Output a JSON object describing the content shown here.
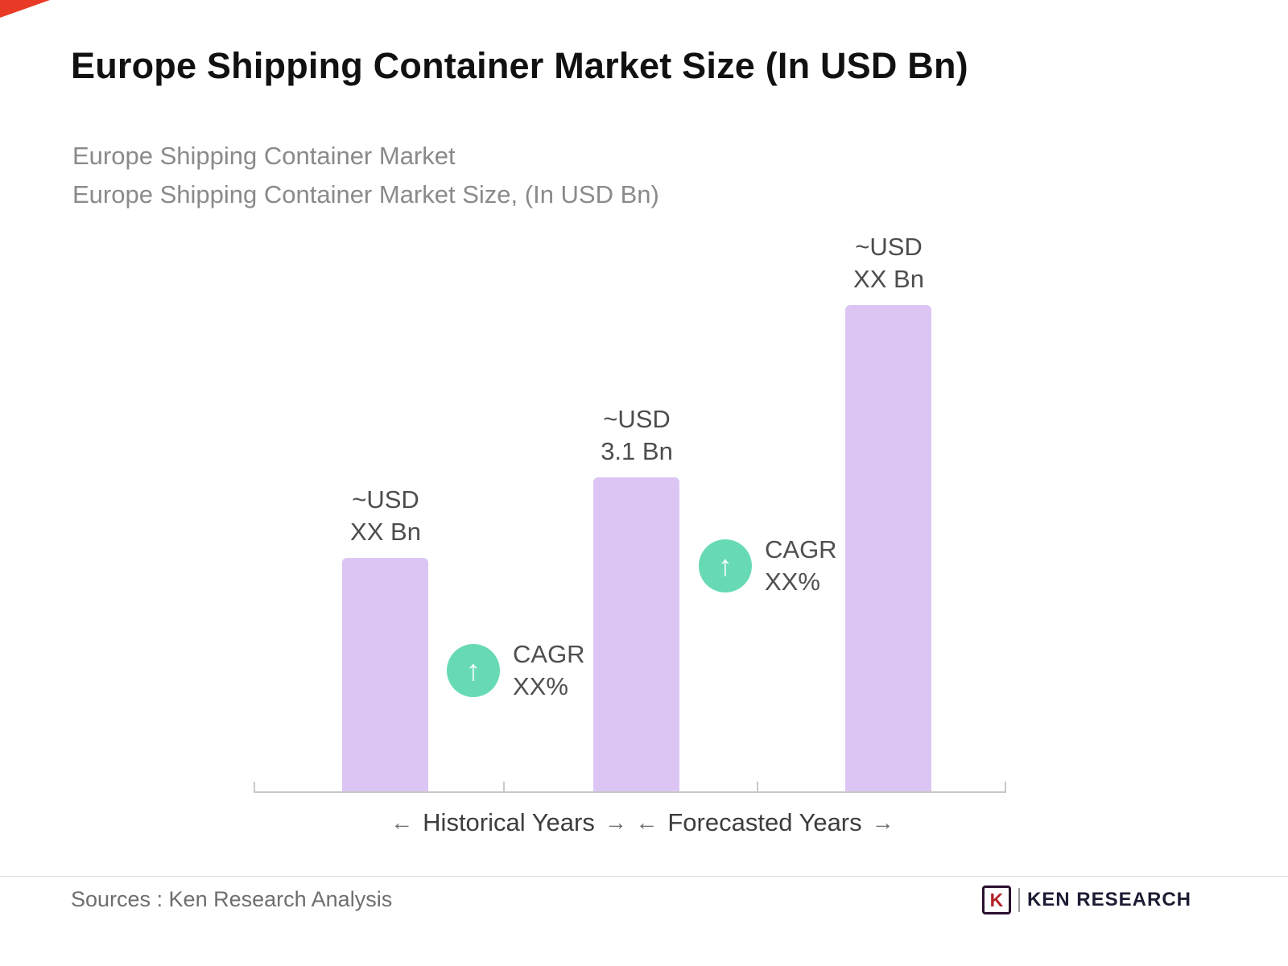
{
  "title": "Europe Shipping Container Market Size (In USD Bn)",
  "subtitle": {
    "line1": "Europe Shipping Container Market",
    "line2": "Europe Shipping Container Market Size, (In USD Bn)"
  },
  "chart_data": {
    "type": "bar",
    "title": "Europe Shipping Container Market Size (In USD Bn)",
    "categories": [
      "Historical Years",
      "Historical Years",
      "Forecasted Years"
    ],
    "values": [
      2.3,
      3.1,
      4.8
    ],
    "ylim": [
      0,
      5.6
    ],
    "grid": false,
    "legend": false,
    "bar_color": "#dcc5f3",
    "bar_labels": [
      {
        "line1": "~USD",
        "line2": "XX Bn"
      },
      {
        "line1": "~USD",
        "line2": "3.1 Bn"
      },
      {
        "line1": "~USD",
        "line2": "XX Bn"
      }
    ],
    "cagr_badges": [
      {
        "line1": "CAGR",
        "line2": "XX%",
        "icon": "up-arrow-circle-icon",
        "glyph": "↑",
        "color": "#67dab5"
      },
      {
        "line1": "CAGR",
        "line2": "XX%",
        "icon": "up-arrow-circle-icon",
        "glyph": "↑",
        "color": "#67dab5"
      }
    ],
    "x_axis": {
      "groups": [
        {
          "arrow_left": "←",
          "label": "Historical Years",
          "arrow_right": "→"
        },
        {
          "arrow_left": "←",
          "label": "Forecasted Years",
          "arrow_right": "→"
        }
      ]
    }
  },
  "footer": {
    "sources": "Sources : Ken Research Analysis",
    "logo": {
      "icon_letter": "K",
      "text": "KEN RESEARCH"
    }
  }
}
